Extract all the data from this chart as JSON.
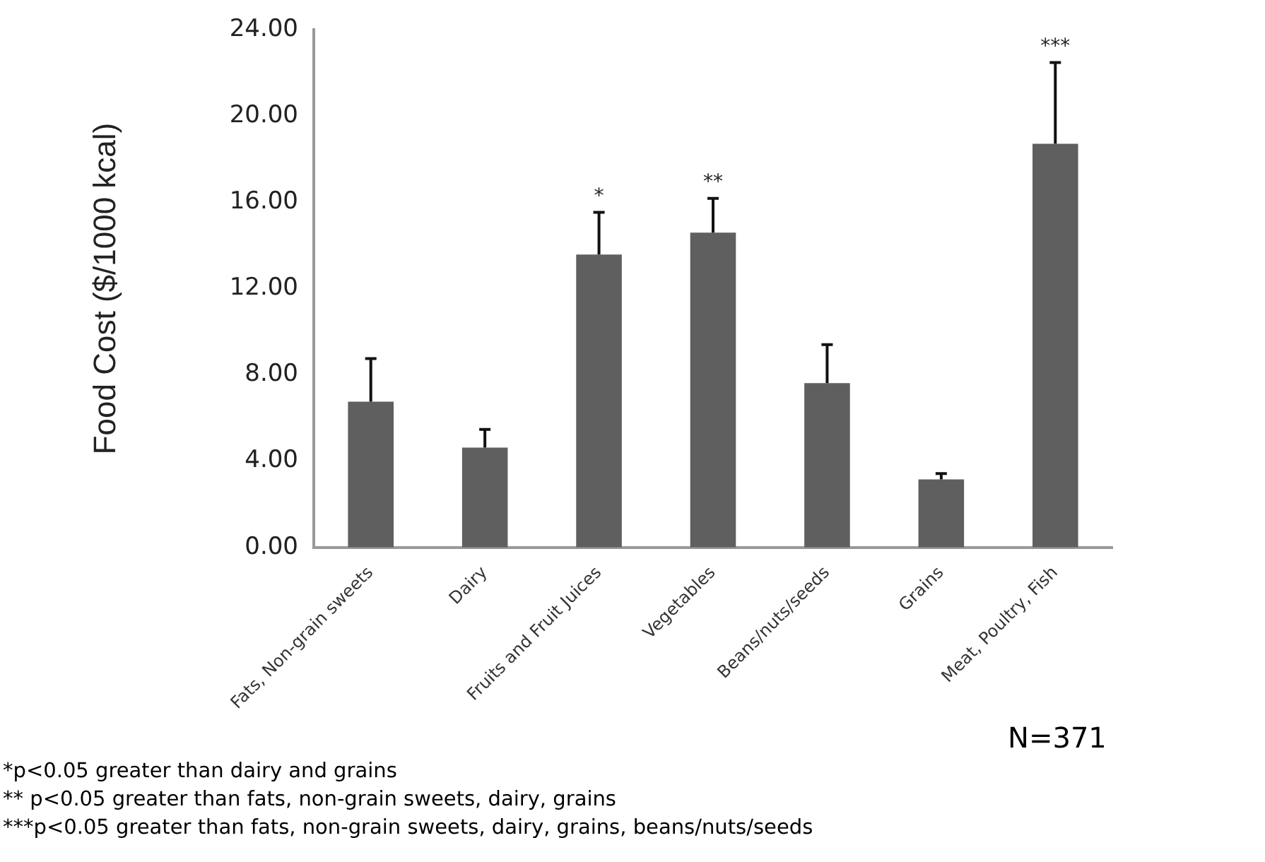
{
  "chart_data": {
    "type": "bar",
    "ylabel": "Food Cost ($/1000 kcal)",
    "categories": [
      "Fats, Non-grain sweets",
      "Dairy",
      "Fruits and Fruit Juices",
      "Vegetables",
      "Beans/nuts/seeds",
      "Grains",
      "Meat, Poultry, Fish"
    ],
    "values": [
      6.76,
      4.63,
      13.58,
      14.6,
      7.62,
      3.15,
      18.72
    ],
    "errors": [
      [
        6.76,
        8.76
      ],
      [
        4.63,
        5.47
      ],
      [
        13.58,
        15.54
      ],
      [
        14.6,
        16.19
      ],
      [
        7.62,
        9.4
      ],
      [
        3.15,
        3.42
      ],
      [
        18.72,
        22.49
      ]
    ],
    "color": "#5f5f5f",
    "ylim": [
      0,
      24
    ],
    "yticks": [
      {
        "value": 0,
        "label": "0.00"
      },
      {
        "value": 4,
        "label": "4.00"
      },
      {
        "value": 8,
        "label": "8.00"
      },
      {
        "value": 12,
        "label": "12.00"
      },
      {
        "value": 16,
        "label": "16.00"
      },
      {
        "value": 20,
        "label": "20.00"
      },
      {
        "value": 24,
        "label": "24.00"
      }
    ],
    "grid": false,
    "legend": false,
    "annotations": [
      {
        "text": "*",
        "x": "Fruits and Fruit Juices",
        "y": 15.54
      },
      {
        "text": "**",
        "x": "Vegetables",
        "y": 16.19
      },
      {
        "text": "***",
        "x": "Meat, Poultry, Fish",
        "y": 22.49
      },
      "N=371",
      "*p<0.05 greater than dairy and grains",
      "** p<0.05 greater than fats, non-grain sweets, dairy, grains",
      "***p<0.05 greater than fats, non-grain sweets, dairy, grains, beans/nuts/seeds"
    ]
  }
}
